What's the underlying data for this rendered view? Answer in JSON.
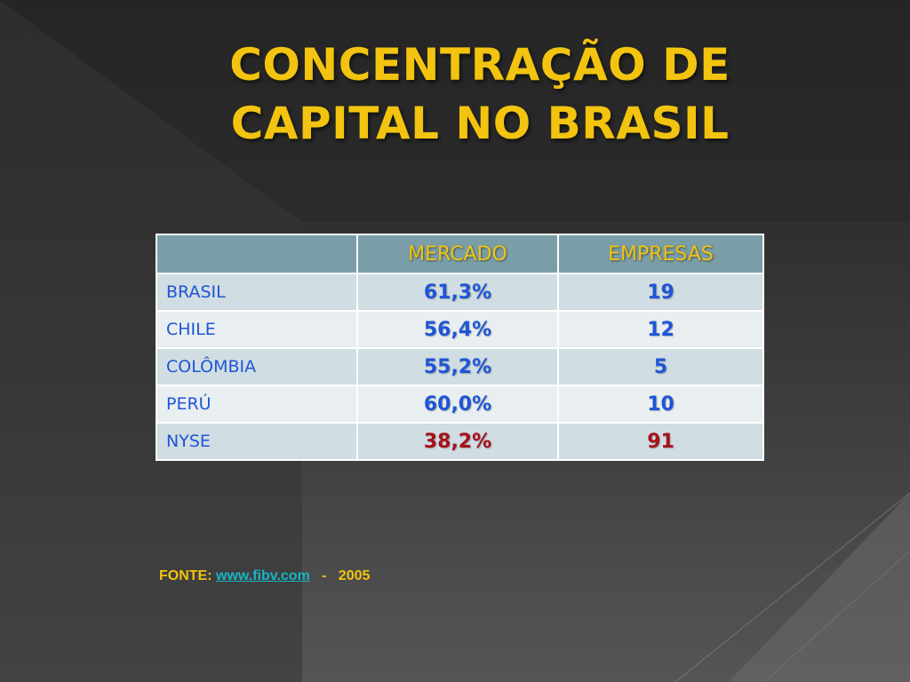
{
  "slide": {
    "title": "CONCENTRAÇÃO DE\nCAPITAL NO BRASIL"
  },
  "table": {
    "headers": [
      "",
      "MERCADO",
      "EMPRESAS"
    ],
    "rows": [
      {
        "country": "BRASIL",
        "mercado": "61,3%",
        "empresas": "19"
      },
      {
        "country": "CHILE",
        "mercado": "56,4%",
        "empresas": "12"
      },
      {
        "country": "COLÔMBIA",
        "mercado": "55,2%",
        "empresas": "5"
      },
      {
        "country": "PERÚ",
        "mercado": "60,0%",
        "empresas": "10"
      },
      {
        "country": "NYSE",
        "mercado": "38,2%",
        "empresas": "91"
      }
    ]
  },
  "source": {
    "label": "FONTE: ",
    "link": "www.fibv.com",
    "separator": "   -   ",
    "year": "2005"
  },
  "colors": {
    "title": "#f2c40f",
    "header_bg": "#7a9ea8",
    "value_blue": "#1f55d6",
    "value_red": "#a6111b",
    "link": "#16b6c4"
  }
}
